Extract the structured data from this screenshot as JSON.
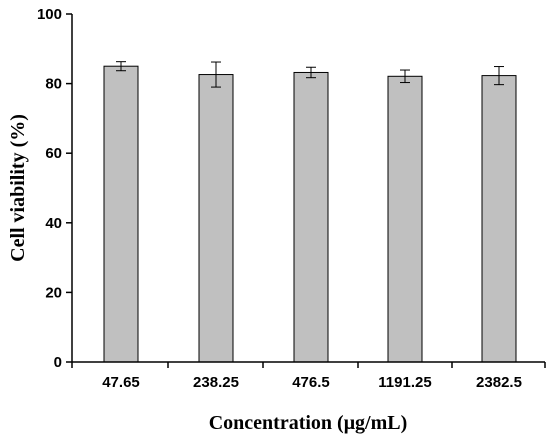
{
  "chart_data": {
    "type": "bar",
    "xlabel": "Concentration (μg/mL)",
    "ylabel": "Cell viability (%)",
    "categories": [
      "47.65",
      "238.25",
      "476.5",
      "1191.25",
      "2382.5"
    ],
    "values": [
      85.0,
      82.6,
      83.2,
      82.1,
      82.3
    ],
    "errors": [
      1.3,
      3.6,
      1.5,
      1.8,
      2.6
    ],
    "ylim": [
      0,
      100
    ],
    "yticks": [
      0,
      20,
      40,
      60,
      80,
      100
    ],
    "grid": false,
    "bar_color": "#c0c0c0",
    "bar_edge_color": "#000000"
  }
}
